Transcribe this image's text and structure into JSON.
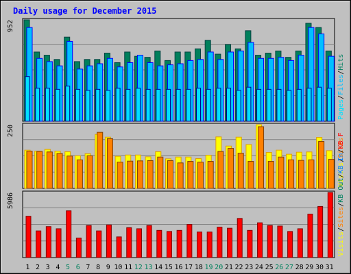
{
  "chart_data": [
    {
      "type": "bar",
      "title": "Daily usage for December 2015",
      "ylabel": "952",
      "legend": [
        "Pages",
        "Files",
        "Hits"
      ],
      "legend_placement": "right",
      "categories": [
        "1",
        "2",
        "3",
        "4",
        "5",
        "6",
        "7",
        "8",
        "9",
        "10",
        "11",
        "12",
        "13",
        "14",
        "15",
        "16",
        "17",
        "18",
        "19",
        "20",
        "21",
        "22",
        "23",
        "24",
        "25",
        "26",
        "27",
        "28",
        "29",
        "30",
        "31"
      ],
      "weekend_days": [
        "5",
        "6",
        "12",
        "13",
        "19",
        "20",
        "26",
        "27"
      ],
      "ylim": [
        0,
        952
      ],
      "series": [
        {
          "name": "Hits",
          "values": [
            952,
            650,
            620,
            580,
            790,
            560,
            580,
            580,
            640,
            550,
            650,
            610,
            600,
            660,
            570,
            650,
            650,
            680,
            760,
            630,
            720,
            680,
            850,
            620,
            640,
            660,
            600,
            660,
            920,
            880,
            660
          ]
        },
        {
          "name": "Files",
          "values": [
            880,
            590,
            560,
            520,
            750,
            490,
            520,
            540,
            590,
            510,
            550,
            620,
            550,
            520,
            530,
            540,
            570,
            580,
            650,
            580,
            650,
            660,
            740,
            590,
            590,
            600,
            570,
            620,
            880,
            820,
            610
          ]
        },
        {
          "name": "Pages",
          "values": [
            420,
            310,
            310,
            300,
            330,
            300,
            290,
            300,
            290,
            310,
            300,
            310,
            300,
            300,
            300,
            300,
            300,
            310,
            300,
            310,
            310,
            290,
            320,
            300,
            300,
            300,
            290,
            300,
            310,
            320,
            310
          ]
        }
      ]
    },
    {
      "type": "bar",
      "ylabel": "250",
      "legend": [
        "Visits",
        "Sites"
      ],
      "legend_placement": "right",
      "categories": [
        "1",
        "2",
        "3",
        "4",
        "5",
        "6",
        "7",
        "8",
        "9",
        "10",
        "11",
        "12",
        "13",
        "14",
        "15",
        "16",
        "17",
        "18",
        "19",
        "20",
        "21",
        "22",
        "23",
        "24",
        "25",
        "26",
        "27",
        "28",
        "29",
        "30",
        "31"
      ],
      "ylim": [
        0,
        250
      ],
      "series": [
        {
          "name": "Visits",
          "values": [
            150,
            146,
            153,
            146,
            144,
            128,
            136,
            212,
            201,
            126,
            131,
            131,
            124,
            144,
            116,
            123,
            123,
            117,
            130,
            202,
            166,
            201,
            172,
            250,
            141,
            150,
            134,
            142,
            143,
            200,
            148
          ]
        },
        {
          "name": "Sites",
          "values": [
            146,
            145,
            143,
            137,
            127,
            112,
            128,
            220,
            195,
            103,
            107,
            108,
            109,
            123,
            109,
            100,
            106,
            103,
            106,
            145,
            157,
            138,
            106,
            242,
            106,
            123,
            112,
            110,
            112,
            184,
            114
          ]
        }
      ]
    },
    {
      "type": "bar",
      "ylabel": "5986",
      "legend": [
        "Visits",
        "Sites",
        "KB Out",
        "KB In",
        "KB F"
      ],
      "legend_placement": "right",
      "categories": [
        "1",
        "2",
        "3",
        "4",
        "5",
        "6",
        "7",
        "8",
        "9",
        "10",
        "11",
        "12",
        "13",
        "14",
        "15",
        "16",
        "17",
        "18",
        "19",
        "20",
        "21",
        "22",
        "23",
        "24",
        "25",
        "26",
        "27",
        "28",
        "29",
        "30",
        "31"
      ],
      "ylim": [
        0,
        5986
      ],
      "series": [
        {
          "name": "KB F",
          "values": [
            3800,
            2450,
            2850,
            2650,
            4300,
            1800,
            2950,
            2450,
            3000,
            1900,
            2750,
            2650,
            2950,
            2500,
            2400,
            2500,
            3050,
            2350,
            2350,
            2800,
            2700,
            3600,
            2500,
            3200,
            2950,
            2900,
            2400,
            2650,
            4000,
            4700,
            5986
          ]
        }
      ]
    }
  ]
}
